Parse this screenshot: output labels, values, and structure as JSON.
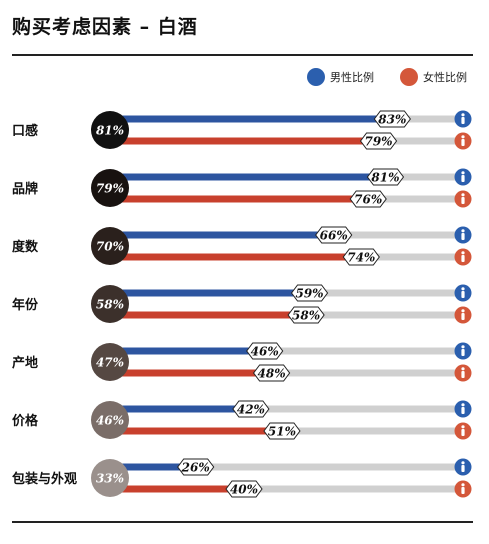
{
  "title": "购买考虑因素 – 白酒",
  "legend": {
    "male_label": "男性比例",
    "female_label": "女性比例"
  },
  "colors": {
    "male_bar": "#2d55a0",
    "female_bar": "#c8402d",
    "male_icon": "#2b5fae",
    "female_icon": "#d4573a",
    "track": "#d0d0d0",
    "overall_circles": [
      "#111111",
      "#181210",
      "#2a201c",
      "#3c302b",
      "#554842",
      "#7a6d68",
      "#9a908c"
    ]
  },
  "chart_data": {
    "type": "bar",
    "title": "购买考虑因素 – 白酒",
    "categories": [
      "口感",
      "品牌",
      "度数",
      "年份",
      "产地",
      "价格",
      "包装与外观"
    ],
    "overall": [
      "81%",
      "79%",
      "70%",
      "58%",
      "47%",
      "46%",
      "33%"
    ],
    "series": [
      {
        "name": "男性比例",
        "values": [
          83,
          81,
          66,
          59,
          46,
          42,
          26
        ],
        "labels": [
          "83%",
          "81%",
          "66%",
          "59%",
          "46%",
          "42%",
          "26%"
        ]
      },
      {
        "name": "女性比例",
        "values": [
          79,
          76,
          74,
          58,
          48,
          51,
          40
        ],
        "labels": [
          "79%",
          "76%",
          "74%",
          "58%",
          "48%",
          "51%",
          "40%"
        ]
      }
    ],
    "xlim": [
      0,
      100
    ],
    "grid": false,
    "legend_position": "top-right"
  }
}
